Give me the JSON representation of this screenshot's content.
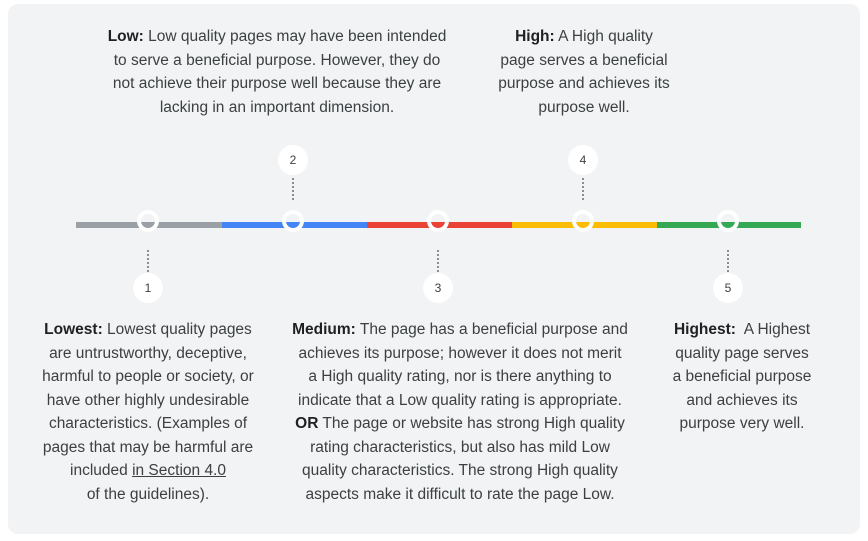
{
  "colors": {
    "panel_bg": "#f1f3f4",
    "lowest": "#9aa0a6",
    "low": "#4285f4",
    "medium": "#ea4335",
    "high": "#fbbc04",
    "highest": "#34a853"
  },
  "scale": {
    "markers": [
      "1",
      "2",
      "3",
      "4",
      "5"
    ]
  },
  "lowest": {
    "label": "Lowest:",
    "line1": "Lowest quality pages",
    "line2": "are untrustworthy, deceptive,",
    "line3": "harmful to people or society, or",
    "line4": "have other highly undesirable",
    "line5": "characteristics. (Examples of",
    "line6": "pages that may be harmful are",
    "line7_prefix": "included",
    "link_text": "in Section 4.0",
    "line8": "of the guidelines)."
  },
  "low": {
    "label": "Low:",
    "line1": "Low quality pages may have been intended",
    "line2": "to serve a beneficial purpose. However, they do",
    "line3": "not achieve their purpose well because they are",
    "line4": "lacking in an important dimension."
  },
  "medium": {
    "label": "Medium:",
    "line1": "The page has a beneficial purpose and",
    "line2": "achieves its purpose; however it does not merit",
    "line3": "a High quality rating, nor is there anything to",
    "line4": "indicate that a Low quality rating is appropriate.",
    "or_label": "OR",
    "line5": "The page or website has strong High quality",
    "line6": "rating characteristics, but also has mild Low",
    "line7": "quality characteristics. The strong High quality",
    "line8": "aspects make it difficult to rate the page Low."
  },
  "high": {
    "label": "High:",
    "line1": "A High quality",
    "line2": "page serves a beneficial",
    "line3": "purpose and achieves its",
    "line4": "purpose well."
  },
  "highest": {
    "label": "Highest:",
    "line1": "A Highest",
    "line2": "quality page serves",
    "line3": "a beneficial purpose",
    "line4": "and achieves its",
    "line5": "purpose very well."
  }
}
